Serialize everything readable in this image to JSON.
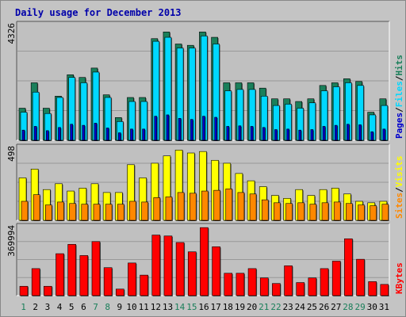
{
  "chart_data": {
    "type": "bar",
    "title": "Daily usage for December 2013",
    "categories": [
      "1",
      "2",
      "3",
      "4",
      "5",
      "6",
      "7",
      "8",
      "9",
      "10",
      "11",
      "12",
      "13",
      "14",
      "15",
      "16",
      "17",
      "18",
      "19",
      "20",
      "21",
      "22",
      "23",
      "24",
      "25",
      "26",
      "27",
      "28",
      "29",
      "30",
      "31"
    ],
    "weekend_days": [
      "1",
      "7",
      "8",
      "14",
      "15",
      "21",
      "22",
      "28",
      "29"
    ],
    "panels": [
      {
        "id": "hits",
        "ymax_label": "4326",
        "ylim": [
          0,
          4326
        ],
        "legend": [
          "Pages",
          "Files",
          "Hits"
        ],
        "series": [
          {
            "name": "Hits",
            "color": "#1a7f5a",
            "values": [
              1200,
              2150,
              1200,
              1650,
              2450,
              2350,
              2700,
              1700,
              850,
              1600,
              1600,
              3800,
              4050,
              3600,
              3550,
              4050,
              3850,
              2150,
              2150,
              2150,
              1950,
              1550,
              1550,
              1450,
              1550,
              2050,
              2150,
              2300,
              2200,
              1050,
              1550
            ]
          },
          {
            "name": "Files",
            "color": "#00d8ff",
            "values": [
              1050,
              1800,
              1000,
              1600,
              2350,
              2150,
              2550,
              1600,
              700,
              1450,
              1450,
              3700,
              3850,
              3450,
              3450,
              3900,
              3600,
              1850,
              1900,
              1900,
              1650,
              1300,
              1350,
              1200,
              1400,
              1850,
              2000,
              2150,
              2050,
              950,
              1300
            ]
          },
          {
            "name": "Pages",
            "color": "#0000cc",
            "values": [
              380,
              520,
              360,
              480,
              600,
              560,
              640,
              460,
              280,
              420,
              420,
              900,
              950,
              820,
              780,
              900,
              860,
              520,
              540,
              520,
              480,
              400,
              420,
              380,
              400,
              520,
              560,
              600,
              580,
              320,
              420
            ]
          }
        ]
      },
      {
        "id": "visits",
        "ymax_label": "498",
        "ylim": [
          0,
          498
        ],
        "legend": [
          "Sites",
          "Visits"
        ],
        "series": [
          {
            "name": "Visits",
            "color": "#ffff00",
            "values": [
              290,
              350,
              210,
              250,
              200,
              220,
              250,
              190,
              190,
              380,
              290,
              390,
              440,
              480,
              460,
              470,
              410,
              390,
              320,
              270,
              230,
              170,
              150,
              210,
              170,
              210,
              220,
              180,
              130,
              120,
              130
            ]
          },
          {
            "name": "Sites",
            "color": "#ff8800",
            "values": [
              130,
              175,
              105,
              125,
              115,
              110,
              110,
              110,
              110,
              130,
              125,
              155,
              160,
              190,
              185,
              200,
              205,
              215,
              190,
              180,
              140,
              120,
              115,
              120,
              110,
              120,
              125,
              115,
              105,
              100,
              110
            ]
          }
        ]
      },
      {
        "id": "kbytes",
        "ymax_label": "369994",
        "ylim": [
          0,
          369994
        ],
        "legend": [
          "KBytes"
        ],
        "series": [
          {
            "name": "KBytes",
            "color": "#ff0000",
            "values": [
              50000,
              145000,
              50000,
              225000,
              275000,
              215000,
              290000,
              150000,
              35000,
              175000,
              110000,
              325000,
              320000,
              285000,
              235000,
              365000,
              262000,
              120000,
              120000,
              145000,
              95000,
              65000,
              160000,
              70000,
              95000,
              145000,
              185000,
              305000,
              195000,
              75000,
              60000
            ]
          }
        ]
      }
    ]
  }
}
